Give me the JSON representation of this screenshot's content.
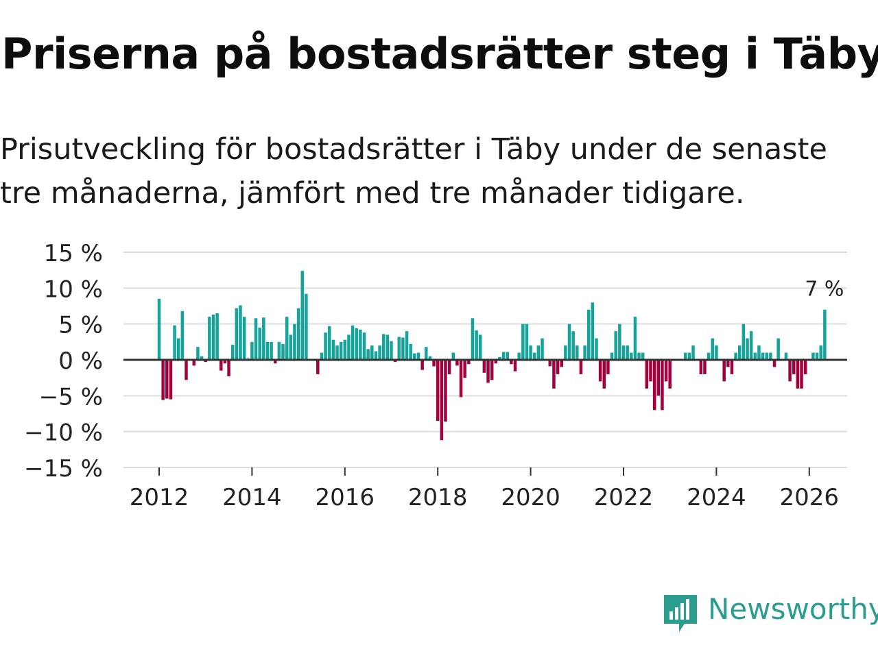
{
  "title": "Priserna på bostadsrätter steg i Täby",
  "subtitle": "Prisutveckling för bostadsrätter i Täby under de senaste tre månaderna, jämfört med tre månader tidigare.",
  "brand": {
    "name": "Newsworthy",
    "icon": "newsworthy-logo-icon",
    "color": "#2a9d8f"
  },
  "colors": {
    "positive": "#16a39a",
    "negative": "#a3003e",
    "grid": "#dddddd",
    "zero": "#333333",
    "text": "#222222"
  },
  "chart_data": {
    "type": "bar",
    "title": "Priserna på bostadsrätter steg i Täby",
    "xlabel": "",
    "ylabel": "",
    "ylim": [
      -15,
      15
    ],
    "yticks": [
      15,
      10,
      5,
      0,
      -5,
      -10,
      -15
    ],
    "ytick_labels": [
      "15 %",
      "10 %",
      "5 %",
      "0 %",
      "−5 %",
      "−10 %",
      "−15 %"
    ],
    "xticks": [
      2012,
      2014,
      2016,
      2018,
      2020,
      2022,
      2024,
      2026
    ],
    "xtick_labels": [
      "2012",
      "2014",
      "2016",
      "2018",
      "2020",
      "2022",
      "2024",
      "2026"
    ],
    "x_start": "2012-01",
    "x_unit": "month",
    "values": [
      8.5,
      -5.6,
      -5.4,
      -5.5,
      4.8,
      3.0,
      6.8,
      -2.8,
      0,
      -0.8,
      1.8,
      0.5,
      -0.3,
      6.0,
      6.3,
      6.5,
      -1.5,
      -0.5,
      -2.3,
      2.1,
      7.2,
      7.6,
      6.0,
      0.2,
      2.5,
      5.8,
      4.5,
      5.9,
      2.5,
      2.5,
      -0.5,
      2.5,
      2.2,
      6.0,
      3.5,
      5.0,
      7.2,
      12.4,
      9.2,
      0,
      0,
      -2.0,
      1.0,
      3.8,
      4.7,
      2.8,
      2.0,
      2.5,
      2.8,
      3.5,
      4.8,
      4.4,
      4.2,
      3.8,
      1.5,
      2.0,
      1.2,
      2.0,
      3.6,
      3.5,
      2.6,
      -0.3,
      3.2,
      3.1,
      4.0,
      2.2,
      0.9,
      1.0,
      -1.4,
      1.8,
      0.5,
      -0.9,
      -8.5,
      -11.2,
      -8.6,
      -2.0,
      1.0,
      -0.8,
      -5.2,
      -2.5,
      -0.6,
      5.8,
      4.1,
      3.5,
      -1.8,
      -3.2,
      -2.8,
      -0.5,
      0.4,
      1.1,
      1.1,
      -0.6,
      -1.6,
      1.0,
      5.0,
      5.0,
      2.0,
      1.0,
      2.0,
      3.0,
      0,
      -0.9,
      -4.0,
      -2.0,
      -1.0,
      2.0,
      5.0,
      4.0,
      2.0,
      -2.0,
      2.0,
      7.0,
      8.0,
      3.0,
      -3.0,
      -4.0,
      -2.0,
      1.0,
      4.0,
      5.0,
      2.0,
      2.0,
      1.0,
      6.0,
      1.0,
      1.0,
      -4.0,
      -3.0,
      -7.0,
      -5.0,
      -7.0,
      -3.0,
      -4.0,
      0,
      0,
      0,
      1.0,
      1.0,
      2.0,
      0,
      -2.0,
      -2.0,
      1.0,
      3.0,
      2.0,
      0,
      -3.0,
      -1.0,
      -2.0,
      1.0,
      2.0,
      5.0,
      3.0,
      4.0,
      1.0,
      2.0,
      1.0,
      1.0,
      1.0,
      -1.0,
      3.0,
      0,
      1.0,
      -3.0,
      -2.0,
      -4.0,
      -4.0,
      -2.0,
      0,
      1.0,
      1.0,
      2.0,
      7.0
    ],
    "annotations": [
      {
        "label": "7 %",
        "at": "last"
      }
    ]
  }
}
